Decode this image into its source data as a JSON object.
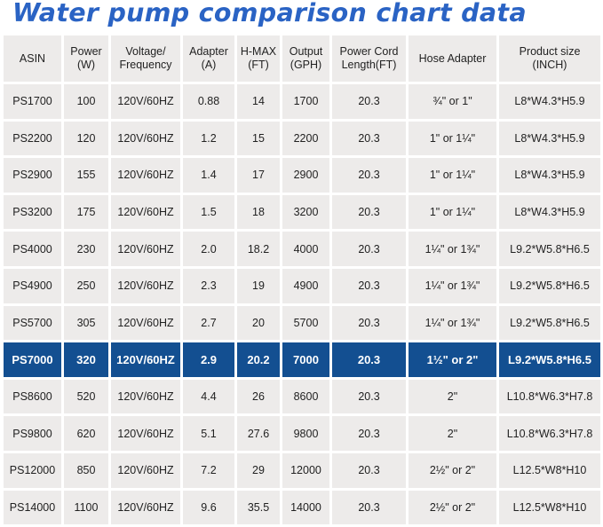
{
  "title": "Water pump comparison chart data",
  "columns": [
    [
      "ASIN"
    ],
    [
      "Power",
      "(W)"
    ],
    [
      "Voltage/",
      "Frequency"
    ],
    [
      "Adapter",
      "(A)"
    ],
    [
      "H-MAX",
      "(FT)"
    ],
    [
      "Output",
      "(GPH)"
    ],
    [
      "Power Cord",
      "Length(FT)"
    ],
    [
      "Hose Adapter"
    ],
    [
      "Product size",
      "(INCH)"
    ]
  ],
  "rows": [
    [
      "PS1700",
      "100",
      "120V/60HZ",
      "0.88",
      "14",
      "1700",
      "20.3",
      "¾\" or 1\"",
      "L8*W4.3*H5.9"
    ],
    [
      "PS2200",
      "120",
      "120V/60HZ",
      "1.2",
      "15",
      "2200",
      "20.3",
      "1\" or 1¼\"",
      "L8*W4.3*H5.9"
    ],
    [
      "PS2900",
      "155",
      "120V/60HZ",
      "1.4",
      "17",
      "2900",
      "20.3",
      "1\" or 1¼\"",
      "L8*W4.3*H5.9"
    ],
    [
      "PS3200",
      "175",
      "120V/60HZ",
      "1.5",
      "18",
      "3200",
      "20.3",
      "1\" or 1¼\"",
      "L8*W4.3*H5.9"
    ],
    [
      "PS4000",
      "230",
      "120V/60HZ",
      "2.0",
      "18.2",
      "4000",
      "20.3",
      "1¼\" or 1¾\"",
      "L9.2*W5.8*H6.5"
    ],
    [
      "PS4900",
      "250",
      "120V/60HZ",
      "2.3",
      "19",
      "4900",
      "20.3",
      "1¼\" or 1¾\"",
      "L9.2*W5.8*H6.5"
    ],
    [
      "PS5700",
      "305",
      "120V/60HZ",
      "2.7",
      "20",
      "5700",
      "20.3",
      "1¼\" or 1¾\"",
      "L9.2*W5.8*H6.5"
    ],
    [
      "PS7000",
      "320",
      "120V/60HZ",
      "2.9",
      "20.2",
      "7000",
      "20.3",
      "1½\" or 2\"",
      "L9.2*W5.8*H6.5"
    ],
    [
      "PS8600",
      "520",
      "120V/60HZ",
      "4.4",
      "26",
      "8600",
      "20.3",
      "2\"",
      "L10.8*W6.3*H7.8"
    ],
    [
      "PS9800",
      "620",
      "120V/60HZ",
      "5.1",
      "27.6",
      "9800",
      "20.3",
      "2\"",
      "L10.8*W6.3*H7.8"
    ],
    [
      "PS12000",
      "850",
      "120V/60HZ",
      "7.2",
      "29",
      "12000",
      "20.3",
      "2½\" or 2\"",
      "L12.5*W8*H10"
    ],
    [
      "PS14000",
      "1100",
      "120V/60HZ",
      "9.6",
      "35.5",
      "14000",
      "20.3",
      "2½\" or 2\"",
      "L12.5*W8*H10"
    ]
  ],
  "highlight_row": 7,
  "colors": {
    "title": "#2a63c4",
    "cell_bg": "#edebea",
    "highlight_bg": "#134f91",
    "highlight_text": "#ffffff"
  }
}
